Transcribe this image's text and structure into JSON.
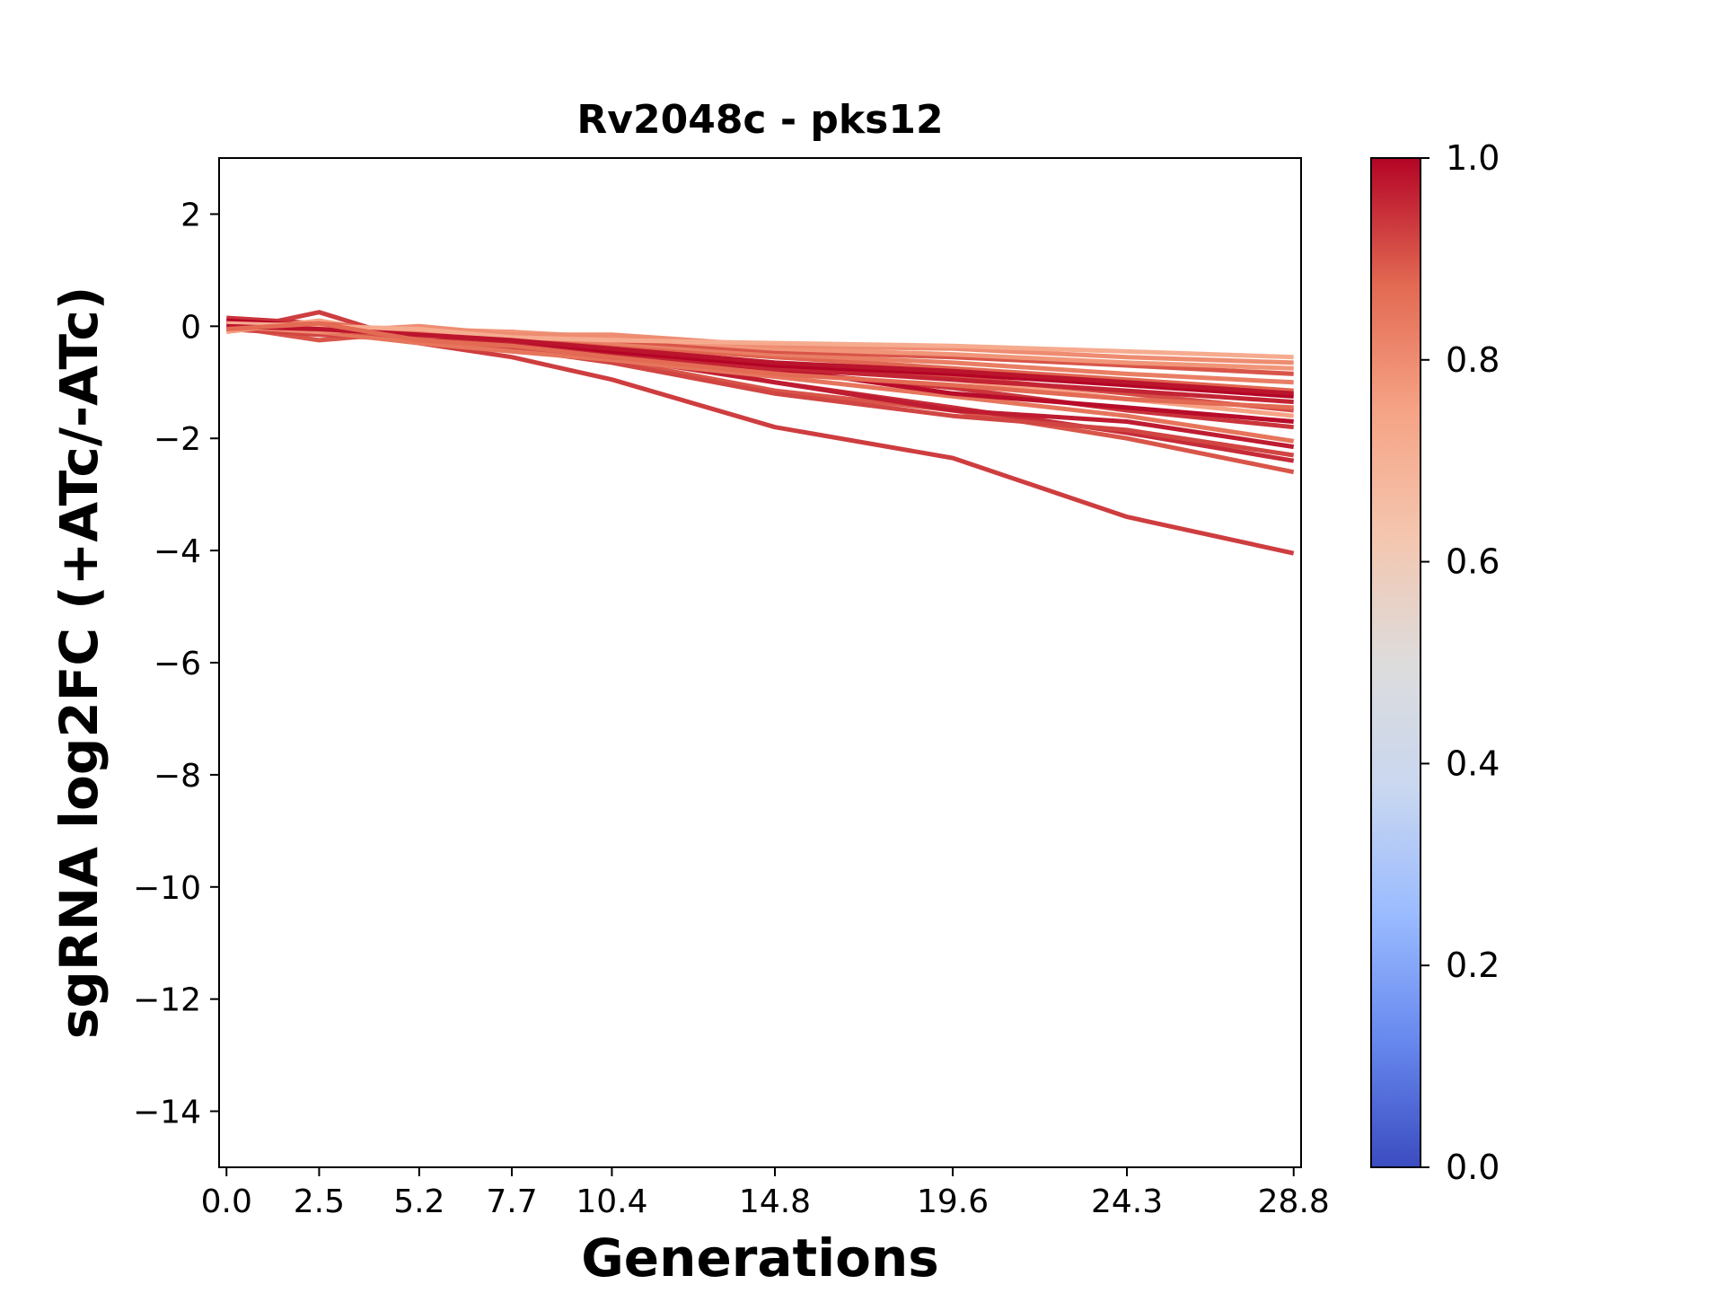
{
  "chart_data": {
    "type": "line",
    "title": "Rv2048c - pks12",
    "xlabel": "Generations",
    "ylabel": "sgRNA log2FC (+ATc/-ATc)",
    "x": [
      0.0,
      2.5,
      5.2,
      7.7,
      10.4,
      14.8,
      19.6,
      24.3,
      28.8
    ],
    "x_tick_labels": [
      "0.0",
      "2.5",
      "5.2",
      "7.7",
      "10.4",
      "14.8",
      "19.6",
      "24.3",
      "28.8"
    ],
    "xlim": [
      -0.2,
      29.0
    ],
    "ylim": [
      -15,
      3
    ],
    "y_ticks": [
      2,
      0,
      -2,
      -4,
      -6,
      -8,
      -10,
      -12,
      -14
    ],
    "y_tick_labels": [
      "2",
      "0",
      "−2",
      "−4",
      "−6",
      "−8",
      "−10",
      "−12",
      "−14"
    ],
    "grid": false,
    "colormap": "coolwarm",
    "colorbar": {
      "range": [
        0.0,
        1.0
      ],
      "ticks": [
        0.0,
        0.2,
        0.4,
        0.6,
        0.8,
        1.0
      ],
      "tick_labels": [
        "0.0",
        "0.2",
        "0.4",
        "0.6",
        "0.8",
        "1.0"
      ],
      "stops": [
        "#3b4cc0",
        "#6788ee",
        "#9abbff",
        "#c9d7f0",
        "#dddcdc",
        "#f4c6af",
        "#f6a385",
        "#e26952",
        "#b40426"
      ]
    },
    "series": [
      {
        "values": [
          -0.1,
          0.25,
          -0.3,
          -0.55,
          -0.95,
          -1.8,
          -2.35,
          -3.4,
          -4.05
        ],
        "color_value": 0.93
      },
      {
        "values": [
          0.0,
          -0.25,
          -0.1,
          -0.4,
          -0.6,
          -1.15,
          -1.5,
          -2.0,
          -2.6
        ],
        "color_value": 0.9
      },
      {
        "values": [
          0.1,
          0.0,
          -0.2,
          -0.35,
          -0.55,
          -1.0,
          -1.45,
          -1.9,
          -2.4
        ],
        "color_value": 0.95
      },
      {
        "values": [
          -0.05,
          -0.15,
          -0.25,
          -0.4,
          -0.65,
          -1.2,
          -1.6,
          -1.85,
          -2.3
        ],
        "color_value": 0.92
      },
      {
        "values": [
          0.05,
          0.0,
          -0.15,
          -0.3,
          -0.5,
          -1.0,
          -1.5,
          -1.7,
          -2.15
        ],
        "color_value": 0.97
      },
      {
        "values": [
          0.0,
          -0.1,
          -0.3,
          -0.45,
          -0.6,
          -0.9,
          -1.25,
          -1.6,
          -2.05
        ],
        "color_value": 0.85
      },
      {
        "values": [
          0.15,
          0.05,
          -0.1,
          -0.2,
          -0.45,
          -0.8,
          -1.1,
          -1.5,
          -1.8
        ],
        "color_value": 0.94
      },
      {
        "values": [
          0.0,
          -0.05,
          -0.2,
          -0.35,
          -0.55,
          -0.75,
          -1.2,
          -1.45,
          -1.7
        ],
        "color_value": 0.99
      },
      {
        "values": [
          -0.1,
          0.1,
          -0.2,
          -0.3,
          -0.4,
          -0.65,
          -0.95,
          -1.3,
          -1.6
        ],
        "color_value": 0.75
      },
      {
        "values": [
          0.05,
          -0.05,
          -0.15,
          -0.25,
          -0.45,
          -0.7,
          -0.9,
          -1.2,
          -1.5
        ],
        "color_value": 0.91
      },
      {
        "values": [
          0.0,
          0.0,
          -0.2,
          -0.3,
          -0.5,
          -0.75,
          -0.95,
          -1.15,
          -1.35
        ],
        "color_value": 0.96
      },
      {
        "values": [
          0.1,
          0.0,
          -0.15,
          -0.25,
          -0.45,
          -0.7,
          -0.85,
          -1.05,
          -1.25
        ],
        "color_value": 1.0
      },
      {
        "values": [
          0.0,
          0.05,
          -0.1,
          -0.2,
          -0.35,
          -0.55,
          -0.75,
          -0.95,
          -1.15
        ],
        "color_value": 0.88
      },
      {
        "values": [
          -0.05,
          0.0,
          -0.1,
          -0.15,
          -0.3,
          -0.5,
          -0.65,
          -0.85,
          -1.0
        ],
        "color_value": 0.83
      },
      {
        "values": [
          0.05,
          -0.05,
          -0.2,
          -0.1,
          -0.25,
          -0.45,
          -0.55,
          -0.7,
          -0.85
        ],
        "color_value": 0.9
      },
      {
        "values": [
          0.0,
          0.0,
          -0.05,
          -0.1,
          -0.2,
          -0.4,
          -0.5,
          -0.65,
          -0.75
        ],
        "color_value": 0.78
      },
      {
        "values": [
          0.0,
          -0.1,
          0.0,
          -0.15,
          -0.15,
          -0.35,
          -0.4,
          -0.55,
          -0.65
        ],
        "color_value": 0.8
      },
      {
        "values": [
          0.05,
          0.0,
          -0.05,
          -0.2,
          -0.25,
          -0.3,
          -0.35,
          -0.45,
          -0.55
        ],
        "color_value": 0.72
      },
      {
        "values": [
          0.0,
          -0.05,
          -0.15,
          -0.25,
          -0.4,
          -0.65,
          -0.8,
          -1.0,
          -1.2
        ],
        "color_value": 0.98
      },
      {
        "values": [
          -0.05,
          0.05,
          -0.25,
          -0.35,
          -0.55,
          -0.85,
          -1.05,
          -1.3,
          -1.45
        ],
        "color_value": 0.87
      }
    ]
  }
}
